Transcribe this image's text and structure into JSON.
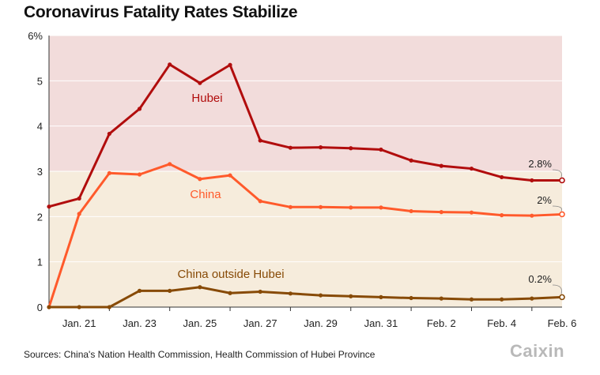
{
  "title": "Coronavirus Fatality Rates Stabilize",
  "source": "Sources: China's Nation Health Commission, Health Commission of Hubei Province",
  "logo": "Caixin",
  "colors": {
    "hubei": "#b10d0d",
    "china": "#ff5a2b",
    "outside": "#874a06",
    "band_upper": "#f2dcdb",
    "band_lower": "#f6ecdc"
  },
  "chart_data": {
    "type": "line",
    "title": "Coronavirus Fatality Rates Stabilize",
    "xlabel": "",
    "ylabel": "",
    "ylim": [
      0,
      6
    ],
    "y_ticks": [
      "0",
      "1",
      "2",
      "3",
      "4",
      "5",
      "6%"
    ],
    "y_tick_values": [
      0,
      1,
      2,
      3,
      4,
      5,
      6
    ],
    "x_tick_labels": [
      "Jan. 21",
      "Jan. 23",
      "Jan. 25",
      "Jan. 27",
      "Jan. 29",
      "Jan. 31",
      "Feb. 2",
      "Feb. 4",
      "Feb. 6"
    ],
    "x_tick_index": [
      1,
      3,
      5,
      7,
      9,
      11,
      13,
      15,
      17
    ],
    "x": [
      "Jan. 20",
      "Jan. 21",
      "Jan. 22",
      "Jan. 23",
      "Jan. 24",
      "Jan. 25",
      "Jan. 26",
      "Jan. 27",
      "Jan. 28",
      "Jan. 29",
      "Jan. 30",
      "Jan. 31",
      "Feb. 1",
      "Feb. 2",
      "Feb. 3",
      "Feb. 4",
      "Feb. 5",
      "Feb. 6"
    ],
    "bands": [
      {
        "from": 3,
        "to": 6,
        "color": "#f2dcdb"
      },
      {
        "from": 0,
        "to": 3,
        "color": "#f6ecdc"
      }
    ],
    "series": [
      {
        "name": "Hubei",
        "color": "#b10d0d",
        "end_label": "2.8%",
        "values": [
          2.22,
          2.4,
          3.83,
          4.38,
          5.36,
          4.95,
          5.35,
          3.68,
          3.52,
          3.53,
          3.51,
          3.48,
          3.24,
          3.12,
          3.06,
          2.87,
          2.8,
          2.8
        ]
      },
      {
        "name": "China",
        "color": "#ff5a2b",
        "end_label": "2%",
        "values": [
          0.0,
          2.06,
          2.96,
          2.93,
          3.16,
          2.83,
          2.91,
          2.34,
          2.21,
          2.21,
          2.2,
          2.2,
          2.12,
          2.1,
          2.09,
          2.03,
          2.02,
          2.05
        ]
      },
      {
        "name": "China outside Hubei",
        "color": "#874a06",
        "end_label": "0.2%",
        "values": [
          0.0,
          0.0,
          0.0,
          0.36,
          0.36,
          0.44,
          0.31,
          0.34,
          0.3,
          0.26,
          0.24,
          0.22,
          0.2,
          0.19,
          0.17,
          0.17,
          0.19,
          0.22
        ]
      }
    ]
  }
}
